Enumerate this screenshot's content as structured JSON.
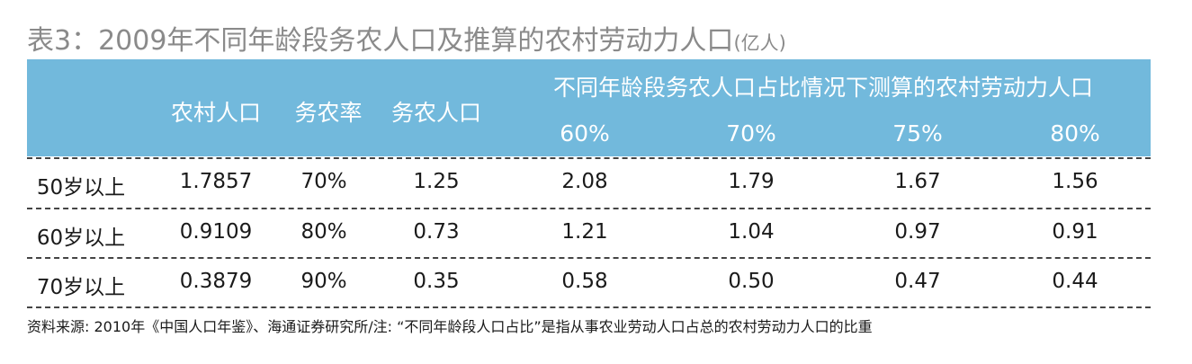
{
  "title": {
    "main": "表3：2009年不同年龄段务农人口及推算的农村劳动力人口",
    "unit": "(亿人)"
  },
  "header": {
    "rural_population": "农村人口",
    "farming_rate": "务农率",
    "farming_population": "务农人口",
    "group_title": "不同年龄段务农人口占比情况下测算的农村劳动力人口",
    "ratios": [
      "60%",
      "70%",
      "75%",
      "80%"
    ]
  },
  "rows": [
    {
      "label": "50岁以上",
      "rural": "1.7857",
      "rate": "70%",
      "farming": "1.25",
      "v60": "2.08",
      "v70": "1.79",
      "v75": "1.67",
      "v80": "1.56"
    },
    {
      "label": "60岁以上",
      "rural": "0.9109",
      "rate": "80%",
      "farming": "0.73",
      "v60": "1.21",
      "v70": "1.04",
      "v75": "0.97",
      "v80": "0.91"
    },
    {
      "label": "70岁以上",
      "rural": "0.3879",
      "rate": "90%",
      "farming": "0.35",
      "v60": "0.58",
      "v70": "0.50",
      "v75": "0.47",
      "v80": "0.44"
    }
  ],
  "footer": "资料来源: 2010年《中国人口年鉴》、海通证券研究所/注: “不同年龄段人口占比”是指从事农业劳动人口占总的农村劳动力人口的比重",
  "colors": {
    "header_bg": "#72b9dc",
    "title": "#8a8a8a"
  }
}
